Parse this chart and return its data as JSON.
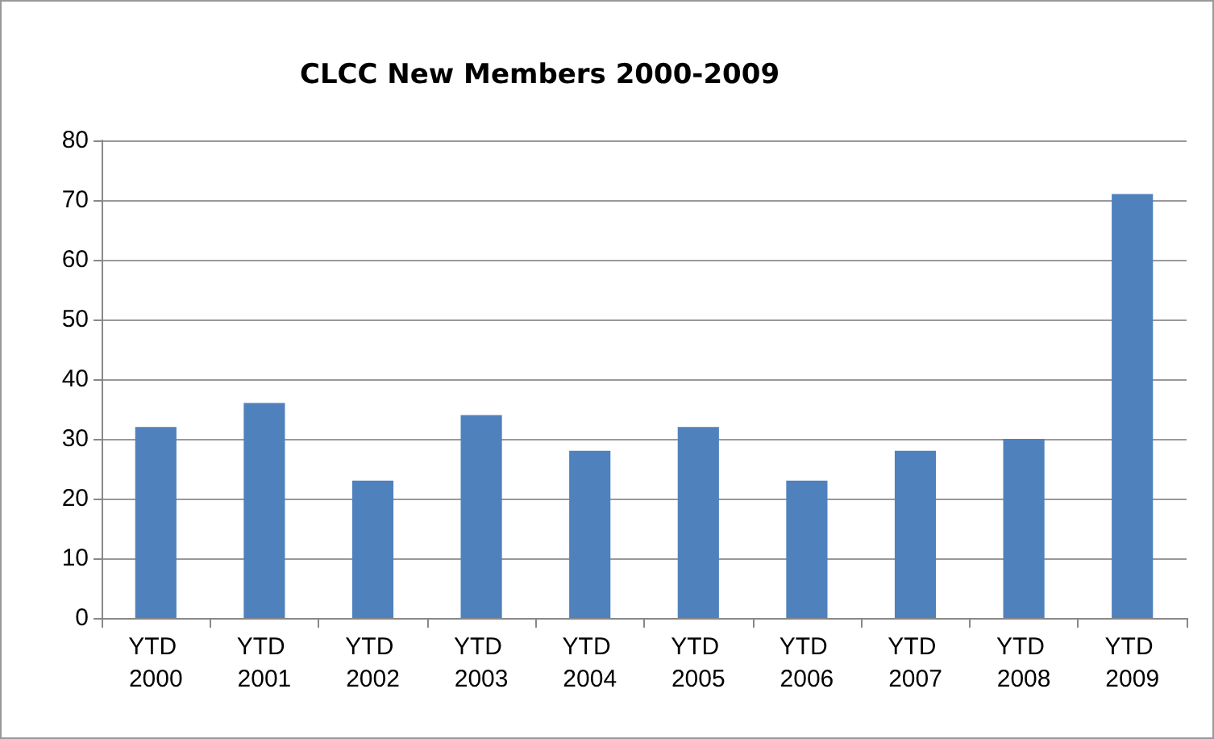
{
  "chart_data": {
    "type": "bar",
    "title": "CLCC New Members 2000-2009",
    "categories": [
      "YTD 2000",
      "YTD 2001",
      "YTD 2002",
      "YTD 2003",
      "YTD 2004",
      "YTD 2005",
      "YTD 2006",
      "YTD 2007",
      "YTD 2008",
      "YTD 2009"
    ],
    "values": [
      32,
      36,
      23,
      34,
      28,
      32,
      23,
      28,
      30,
      71
    ],
    "color": "#4f81bd",
    "ylim": [
      0,
      80
    ],
    "yticks": [
      0,
      10,
      20,
      30,
      40,
      50,
      60,
      70,
      80
    ],
    "grid": "y"
  }
}
